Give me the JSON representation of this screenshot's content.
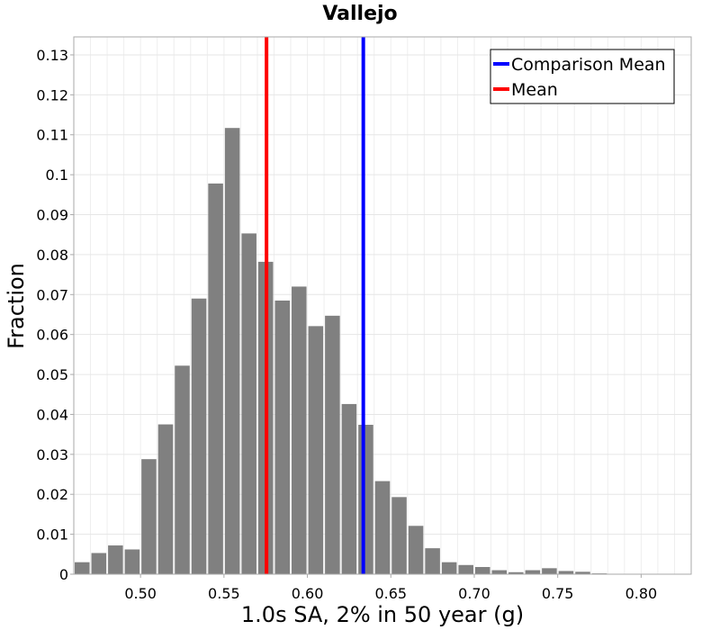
{
  "chart_data": {
    "type": "bar",
    "title": "Vallejo",
    "xlabel": "1.0s SA, 2% in 50 year (g)",
    "ylabel": "Fraction",
    "xlim": [
      0.46,
      0.83
    ],
    "ylim": [
      0,
      0.1345
    ],
    "grid": true,
    "bin_width": 0.01,
    "x_ticks": [
      0.5,
      0.55,
      0.6,
      0.65,
      0.7,
      0.75,
      0.8
    ],
    "x_tick_labels": [
      "0.50",
      "0.55",
      "0.60",
      "0.65",
      "0.70",
      "0.75",
      "0.80"
    ],
    "y_ticks": [
      0,
      0.01,
      0.02,
      0.03,
      0.04,
      0.05,
      0.06,
      0.07,
      0.08,
      0.09,
      0.1,
      0.11,
      0.12,
      0.13
    ],
    "y_tick_labels": [
      "0",
      "0.01",
      "0.02",
      "0.03",
      "0.04",
      "0.05",
      "0.06",
      "0.07",
      "0.08",
      "0.09",
      "0.1",
      "0.11",
      "0.12",
      "0.13"
    ],
    "bar_color": "#808080",
    "bins": [
      {
        "x": 0.465,
        "value": 0.003
      },
      {
        "x": 0.475,
        "value": 0.0053
      },
      {
        "x": 0.485,
        "value": 0.0072
      },
      {
        "x": 0.495,
        "value": 0.0062
      },
      {
        "x": 0.505,
        "value": 0.0288
      },
      {
        "x": 0.515,
        "value": 0.0375
      },
      {
        "x": 0.525,
        "value": 0.0522
      },
      {
        "x": 0.535,
        "value": 0.069
      },
      {
        "x": 0.545,
        "value": 0.0978
      },
      {
        "x": 0.555,
        "value": 0.1117
      },
      {
        "x": 0.565,
        "value": 0.0853
      },
      {
        "x": 0.575,
        "value": 0.0782
      },
      {
        "x": 0.585,
        "value": 0.0685
      },
      {
        "x": 0.595,
        "value": 0.072
      },
      {
        "x": 0.605,
        "value": 0.0621
      },
      {
        "x": 0.615,
        "value": 0.0647
      },
      {
        "x": 0.625,
        "value": 0.0426
      },
      {
        "x": 0.635,
        "value": 0.0374
      },
      {
        "x": 0.645,
        "value": 0.0233
      },
      {
        "x": 0.655,
        "value": 0.0193
      },
      {
        "x": 0.665,
        "value": 0.0121
      },
      {
        "x": 0.675,
        "value": 0.0065
      },
      {
        "x": 0.685,
        "value": 0.003
      },
      {
        "x": 0.695,
        "value": 0.0023
      },
      {
        "x": 0.705,
        "value": 0.0018
      },
      {
        "x": 0.715,
        "value": 0.001
      },
      {
        "x": 0.725,
        "value": 0.0005
      },
      {
        "x": 0.735,
        "value": 0.001
      },
      {
        "x": 0.745,
        "value": 0.0015
      },
      {
        "x": 0.755,
        "value": 0.0008
      },
      {
        "x": 0.765,
        "value": 0.0006
      },
      {
        "x": 0.775,
        "value": 0.0002
      },
      {
        "x": 0.785,
        "value": 0.0001
      },
      {
        "x": 0.795,
        "value": 0.0001
      },
      {
        "x": 0.805,
        "value": 0.0001
      }
    ],
    "vlines": [
      {
        "name": "Comparison Mean",
        "x": 0.6335,
        "color": "#0000ff"
      },
      {
        "name": "Mean",
        "x": 0.5755,
        "color": "#ff0000"
      }
    ],
    "legend": {
      "placement": "top-right",
      "entries": [
        {
          "label": "Comparison Mean",
          "color": "#0000ff"
        },
        {
          "label": "Mean",
          "color": "#ff0000"
        }
      ]
    }
  }
}
